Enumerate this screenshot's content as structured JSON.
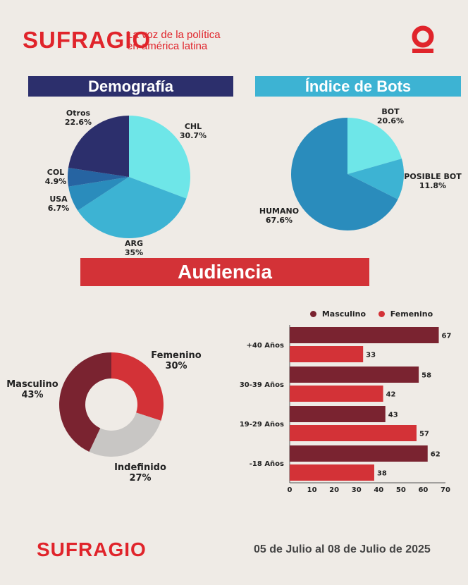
{
  "header": {
    "logo_text": "SUFRAGIO",
    "tagline_line1": "La voz de la política",
    "tagline_line2": "en américa latina",
    "badge_icon": "sufragio-o-icon",
    "brand_color": "#e0242b"
  },
  "sections": {
    "demografia": "Demografía",
    "bots": "Índice de Bots",
    "audiencia": "Audiencia"
  },
  "footer": {
    "logo_text": "SUFRAGIO",
    "date_range": "05 de Julio al 08 de Julio de 2025"
  },
  "chart_data": [
    {
      "type": "pie",
      "title": "Demografía",
      "slices": [
        {
          "name": "CHL",
          "label": "30.7%",
          "value": 30.7,
          "color": "#6ee6e8"
        },
        {
          "name": "ARG",
          "label": "35%",
          "value": 35,
          "color": "#3db3d3"
        },
        {
          "name": "USA",
          "label": "6.7%",
          "value": 6.7,
          "color": "#2a8cbc"
        },
        {
          "name": "COL",
          "label": "4.9%",
          "value": 4.9,
          "color": "#2664a2"
        },
        {
          "name": "Otros",
          "label": "22.6%",
          "value": 22.6,
          "color": "#2c2f6c"
        }
      ]
    },
    {
      "type": "pie",
      "title": "Índice de Bots",
      "slices": [
        {
          "name": "BOT",
          "label": "20.6%",
          "value": 20.6,
          "color": "#6ee6e8"
        },
        {
          "name": "POSIBLE BOT",
          "label": "11.8%",
          "value": 11.8,
          "color": "#3db3d3"
        },
        {
          "name": "HUMANO",
          "label": "67.6%",
          "value": 67.6,
          "color": "#2a8cbc"
        }
      ]
    },
    {
      "type": "pie",
      "title": "Audiencia",
      "donut": true,
      "slices": [
        {
          "name": "Femenino",
          "label": "30%",
          "value": 30,
          "color": "#d33237"
        },
        {
          "name": "Indefinido",
          "label": "27%",
          "value": 27,
          "color": "#c8c6c4"
        },
        {
          "name": "Masculino",
          "label": "43%",
          "value": 43,
          "color": "#7a2330"
        }
      ]
    },
    {
      "type": "bar",
      "orientation": "horizontal",
      "categories": [
        "+40 Años",
        "30-39 Años",
        "19-29 Años",
        "-18 Años"
      ],
      "series": [
        {
          "name": "Masculino",
          "values": [
            67,
            58,
            43,
            62
          ],
          "color": "#7a2330"
        },
        {
          "name": "Femenino",
          "values": [
            33,
            42,
            57,
            38
          ],
          "color": "#d33237"
        }
      ],
      "xlim": [
        0,
        70
      ],
      "xticks": [
        0,
        10,
        20,
        30,
        40,
        50,
        60,
        70
      ],
      "legend_position": "top"
    }
  ]
}
